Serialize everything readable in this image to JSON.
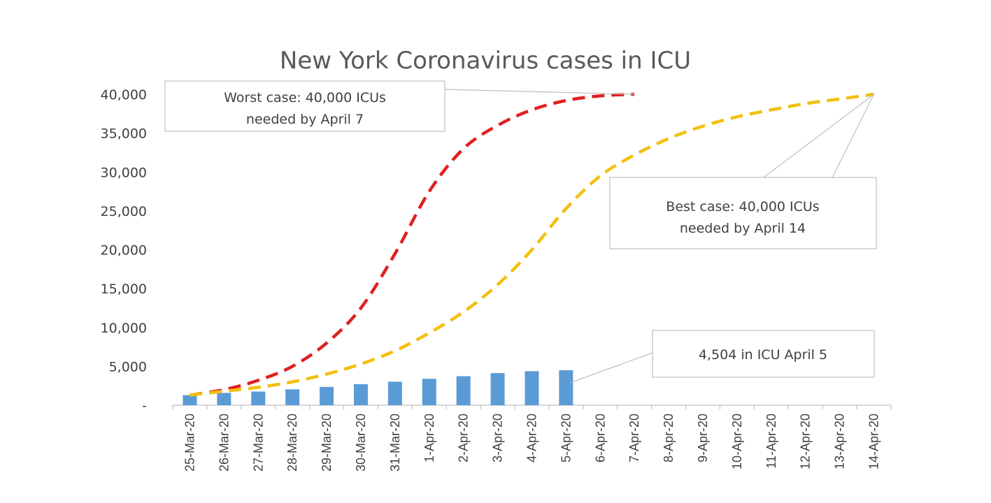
{
  "chart_data": {
    "type": "bar",
    "title": "New York Coronavirus cases in ICU",
    "xlabel": "",
    "ylabel": "",
    "ylim": [
      0,
      40000
    ],
    "yticks": [
      "-",
      "5,000",
      "10,000",
      "15,000",
      "20,000",
      "25,000",
      "30,000",
      "35,000",
      "40,000"
    ],
    "categories": [
      "25-Mar-20",
      "26-Mar-20",
      "27-Mar-20",
      "28-Mar-20",
      "29-Mar-20",
      "30-Mar-20",
      "31-Mar-20",
      "1-Apr-20",
      "2-Apr-20",
      "3-Apr-20",
      "4-Apr-20",
      "5-Apr-20",
      "6-Apr-20",
      "7-Apr-20",
      "8-Apr-20",
      "9-Apr-20",
      "10-Apr-20",
      "11-Apr-20",
      "12-Apr-20",
      "13-Apr-20",
      "14-Apr-20"
    ],
    "bars": {
      "color": "#5b9bd5",
      "values": [
        1290,
        1583,
        1755,
        2037,
        2352,
        2710,
        3022,
        3396,
        3731,
        4126,
        4376,
        4504,
        null,
        null,
        null,
        null,
        null,
        null,
        null,
        null,
        null
      ]
    },
    "lines": [
      {
        "color": "#e02020",
        "style": "dashed",
        "values": [
          1300,
          2000,
          3200,
          5000,
          8000,
          12500,
          19500,
          27500,
          33000,
          36000,
          38000,
          39200,
          39800,
          40000,
          null,
          null,
          null,
          null,
          null,
          null,
          null
        ]
      },
      {
        "color": "#f2c010",
        "style": "dashed",
        "values": [
          1300,
          1800,
          2300,
          3000,
          4000,
          5300,
          7000,
          9300,
          12000,
          15500,
          20000,
          25300,
          29500,
          32200,
          34300,
          35900,
          37100,
          38000,
          38800,
          39400,
          40000
        ]
      }
    ],
    "annotations": [
      {
        "lines": [
          "Worst case: 40,000  ICUs",
          "needed by April 7"
        ]
      },
      {
        "lines": [
          "Best case: 40,000  ICUs",
          "needed by April 14"
        ]
      },
      {
        "lines": [
          "4,504  in ICU April 5"
        ]
      }
    ]
  }
}
